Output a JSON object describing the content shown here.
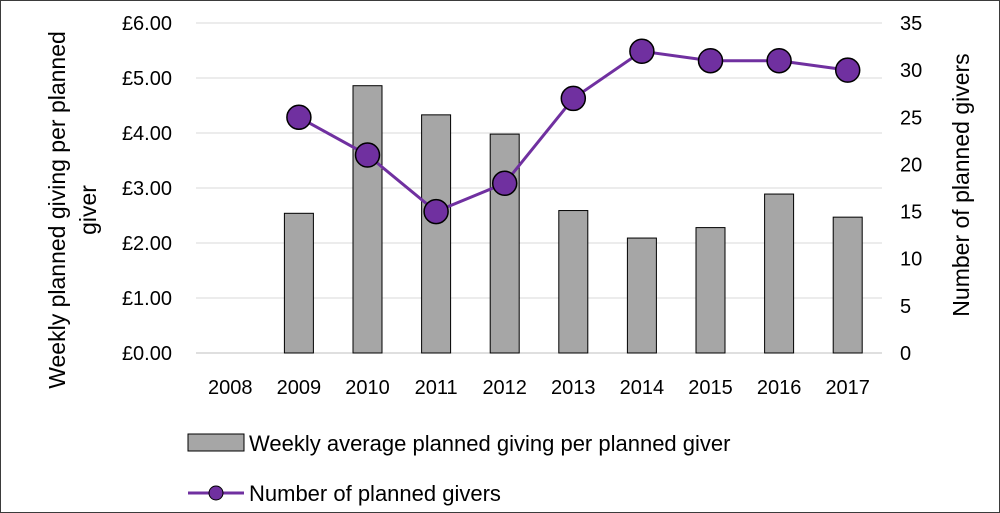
{
  "chart_data": {
    "type": "bar",
    "categories": [
      "2008",
      "2009",
      "2010",
      "2011",
      "2012",
      "2013",
      "2014",
      "2015",
      "2016",
      "2017"
    ],
    "series": [
      {
        "name": "Weekly average planned giving per planned giver",
        "type": "bar",
        "axis": "left",
        "values": [
          null,
          2.54,
          4.86,
          4.33,
          3.98,
          2.59,
          2.09,
          2.28,
          2.89,
          2.47
        ]
      },
      {
        "name": "Number of planned givers",
        "type": "line",
        "axis": "right",
        "values": [
          null,
          25,
          21,
          15,
          18,
          27,
          32,
          31,
          31,
          30
        ]
      }
    ],
    "y_left": {
      "label_line1": "Weekly planned giving per planned",
      "label_line2": "giver",
      "lim": [
        0,
        6
      ],
      "ticks": [
        "£0.00",
        "£1.00",
        "£2.00",
        "£3.00",
        "£4.00",
        "£5.00",
        "£6.00"
      ]
    },
    "y_right": {
      "label": "Number of planned givers",
      "lim": [
        0,
        35
      ],
      "ticks": [
        "0",
        "5",
        "10",
        "15",
        "20",
        "25",
        "30",
        "35"
      ]
    },
    "grid": true,
    "legend": "bottom",
    "colors": {
      "bar": "#a6a6a6",
      "line": "#7030a0",
      "grid": "#d9d9d9"
    }
  }
}
